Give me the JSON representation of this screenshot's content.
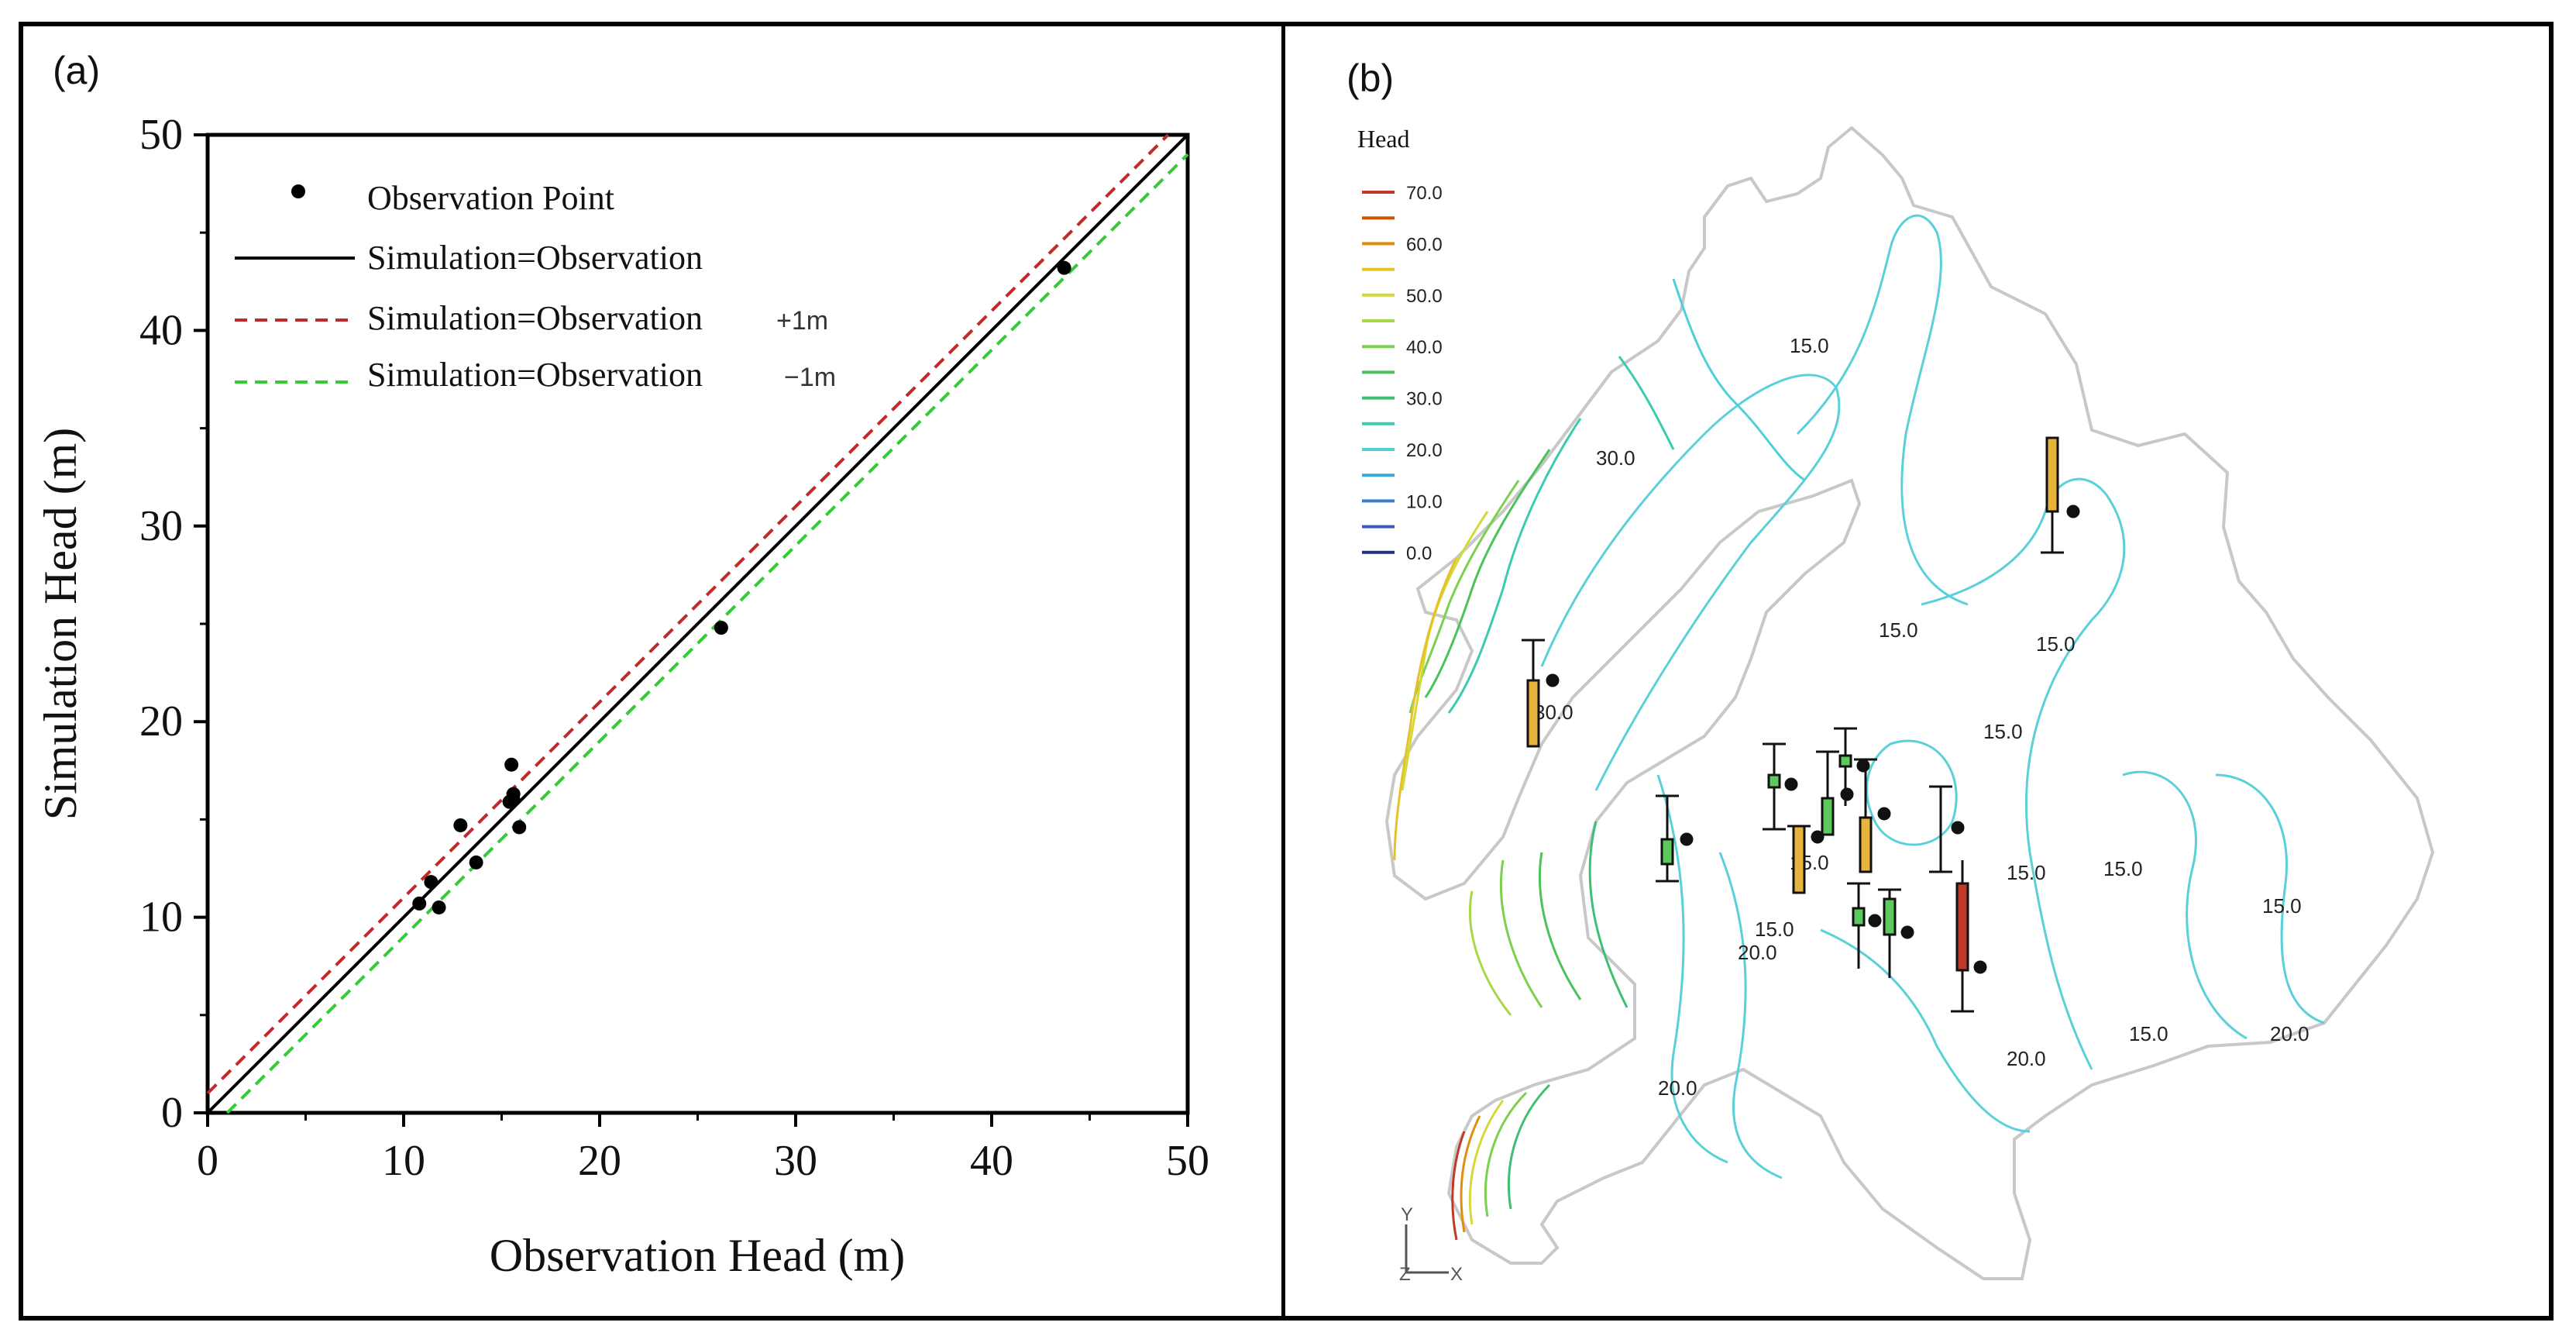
{
  "panel_a": {
    "label": "(a)",
    "chart_data": {
      "type": "scatter",
      "title": "",
      "xlabel": "Observation Head (m)",
      "ylabel": "Simulation Head (m)",
      "xlim": [
        0,
        50
      ],
      "ylim": [
        0,
        50
      ],
      "xticks": [
        "0",
        "10",
        "20",
        "30",
        "40",
        "50"
      ],
      "yticks": [
        "0",
        "10",
        "20",
        "30",
        "40",
        "50"
      ],
      "grid": false,
      "legend_position": "top-left",
      "legend": [
        {
          "label": "Observation Point",
          "style": "dot",
          "color": "#000000"
        },
        {
          "label": "Simulation=Observation",
          "style": "solid",
          "color": "#000000"
        },
        {
          "label": "Simulation=Observation",
          "suffix": "+1m",
          "style": "dashed",
          "color": "#c02a2a"
        },
        {
          "label": "Simulation=Observation",
          "suffix": "−1m",
          "style": "dashed",
          "color": "#33cc33"
        }
      ],
      "series": [
        {
          "name": "Observation Point",
          "points": [
            [
              10.8,
              10.7
            ],
            [
              11.4,
              11.8
            ],
            [
              11.8,
              10.5
            ],
            [
              12.9,
              14.7
            ],
            [
              13.7,
              12.8
            ],
            [
              15.5,
              17.8
            ],
            [
              15.6,
              16.3
            ],
            [
              15.4,
              15.9
            ],
            [
              15.6,
              16.0
            ],
            [
              15.9,
              14.6
            ],
            [
              26.2,
              24.8
            ],
            [
              43.7,
              43.2
            ]
          ]
        }
      ],
      "lines": [
        {
          "name": "Simulation=Observation",
          "offset": 0
        },
        {
          "name": "Simulation=Observation +1m",
          "offset": 1
        },
        {
          "name": "Simulation=Observation −1m",
          "offset": -1
        }
      ]
    }
  },
  "panel_b": {
    "label": "(b)",
    "legend_title": "Head",
    "legend_items": [
      {
        "label": "70.0",
        "color": "#c0392b"
      },
      {
        "label": "",
        "color": "#d35400"
      },
      {
        "label": "60.0",
        "color": "#e08e0b"
      },
      {
        "label": "",
        "color": "#e6c229"
      },
      {
        "label": "50.0",
        "color": "#d4d93a"
      },
      {
        "label": "",
        "color": "#a8d84a"
      },
      {
        "label": "40.0",
        "color": "#7ccf4f"
      },
      {
        "label": "",
        "color": "#4cc25a"
      },
      {
        "label": "30.0",
        "color": "#3fbf73"
      },
      {
        "label": "",
        "color": "#3ccbb0"
      },
      {
        "label": "20.0",
        "color": "#4fcfd6"
      },
      {
        "label": "",
        "color": "#3aa9d9"
      },
      {
        "label": "10.0",
        "color": "#3b7fd0"
      },
      {
        "label": "",
        "color": "#3c5bb8"
      },
      {
        "label": "0.0",
        "color": "#22308a"
      }
    ],
    "contour_labels": [
      {
        "text": "15.0"
      },
      {
        "text": "30.0"
      },
      {
        "text": "15.0"
      },
      {
        "text": "15.0"
      },
      {
        "text": "30.0"
      },
      {
        "text": "15.0"
      },
      {
        "text": "15.0"
      },
      {
        "text": "15.0"
      },
      {
        "text": "15.0"
      },
      {
        "text": "20.0"
      },
      {
        "text": "15.0"
      },
      {
        "text": "15.0"
      },
      {
        "text": "20.0"
      },
      {
        "text": "20.0"
      },
      {
        "text": "20.0"
      },
      {
        "text": "15.0"
      }
    ],
    "axis_labels": {
      "y": "Y",
      "z": "Z",
      "x": "X"
    },
    "contour_color": "#5ad0d8",
    "boundary_color": "#c8c8c8"
  }
}
